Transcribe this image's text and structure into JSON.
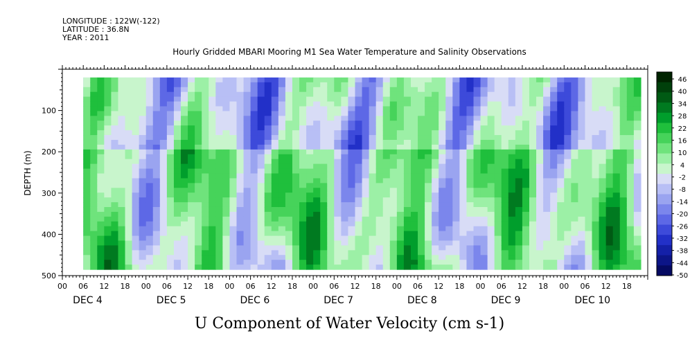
{
  "header": {
    "longitude": "LONGITUDE : 122W(-122)",
    "latitude": "LATITUDE : 36.8N",
    "year": "YEAR : 2011"
  },
  "chart_data": {
    "type": "heatmap",
    "title": "Hourly Gridded MBARI Mooring M1 Sea Water Temperature and Salinity Observations",
    "variable_title": "U Component of Water Velocity (cm s-1)",
    "ylabel": "DEPTH (m)",
    "y_axis": {
      "range": [
        500,
        0
      ],
      "inverted": true,
      "ticks": [
        "100",
        "200",
        "300",
        "400",
        "500"
      ],
      "tick_values": [
        100,
        200,
        300,
        400,
        500
      ]
    },
    "x_axis": {
      "hour_ticks": [
        "00",
        "06",
        "12",
        "18"
      ],
      "day_labels": [
        "DEC  4",
        "DEC  5",
        "DEC  6",
        "DEC  7",
        "DEC  8",
        "DEC  9",
        "DEC  10"
      ],
      "days": 7
    },
    "data_extent": {
      "depth_top_m": 20,
      "depth_bottom_m": 485,
      "start_hour": 6,
      "end_hour": 166
    },
    "colorbar": {
      "labels": [
        "46",
        "40",
        "34",
        "28",
        "22",
        "16",
        "10",
        "4",
        "-2",
        "-8",
        "-14",
        "-20",
        "-26",
        "-32",
        "-38",
        "-44",
        "-50"
      ],
      "range": [
        -50,
        50
      ],
      "colors": [
        "#002300",
        "#00400b",
        "#005a14",
        "#007a20",
        "#009e2c",
        "#1fbf3c",
        "#46d35a",
        "#6fe37c",
        "#9cf0a6",
        "#c8f5cc",
        "#d8dcf6",
        "#b8bff5",
        "#9aa4f0",
        "#7b86ec",
        "#5d68e6",
        "#3d4ada",
        "#2230c8",
        "#1420a8",
        "#0c1588",
        "#050a62"
      ]
    },
    "grid": false
  }
}
